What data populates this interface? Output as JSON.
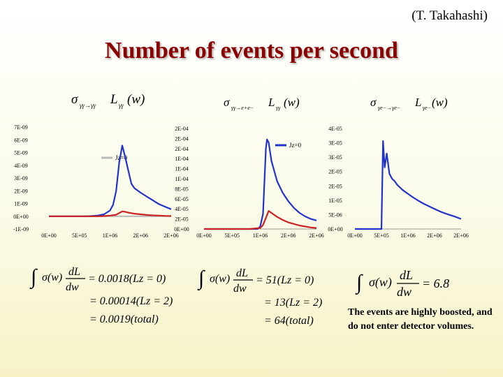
{
  "header": {
    "credit": "(T. Takahashi)",
    "title": "Number of events per second"
  },
  "chart_data": [
    {
      "type": "line",
      "label_parts": [
        "σ",
        "γγ→γγ",
        "L",
        "γγ",
        "(w)"
      ],
      "ylim": [
        -1e-09,
        7e-09
      ],
      "yticks": [
        "7E-09",
        "6E-09",
        "5E-09",
        "4E-09",
        "3E-09",
        "2E-09",
        "1E-09",
        "0E+00",
        "-1E-09"
      ],
      "xlim": [
        0,
        2000000
      ],
      "xticks": [
        "0E+00",
        "5E+05",
        "1E+06",
        "2E+06",
        "2E+06"
      ],
      "series": [
        {
          "name": "Jz=0",
          "color": "#bbbbbb",
          "x": [
            0,
            300000,
            600000,
            800000,
            1000000,
            1150000,
            1300000,
            1600000,
            2000000
          ],
          "y": [
            0,
            0,
            0,
            0,
            0,
            0,
            0,
            0,
            0
          ]
        },
        {
          "color": "#2233cc",
          "x": [
            0,
            300000,
            600000,
            700000,
            800000,
            900000,
            1000000,
            1050000,
            1100000,
            1150000,
            1200000,
            1250000,
            1300000,
            1350000,
            1400000,
            1500000,
            1600000,
            1700000,
            1800000,
            1900000,
            2000000
          ],
          "y": [
            0,
            0,
            0,
            2e-11,
            6e-11,
            1.5e-10,
            4.5e-10,
            9e-10,
            2e-09,
            4.2e-09,
            5.55e-09,
            4.6e-09,
            3.55e-09,
            2.55e-09,
            2.2e-09,
            1.85e-09,
            1.55e-09,
            1.25e-09,
            9.5e-10,
            7.5e-10,
            5.5e-10
          ]
        },
        {
          "color": "#cc2222",
          "x": [
            0,
            300000,
            600000,
            700000,
            800000,
            900000,
            1000000,
            1100000,
            1150000,
            1200000,
            1250000,
            1300000,
            1400000,
            1500000,
            1600000,
            1700000,
            1800000,
            1900000,
            2000000
          ],
          "y": [
            0,
            0,
            0,
            0,
            0,
            2e-11,
            5e-11,
            1.2e-10,
            2.5e-10,
            3.8e-10,
            3.5e-10,
            2.8e-10,
            2e-10,
            1.5e-10,
            1e-10,
            7e-11,
            5e-11,
            3e-11,
            2e-11
          ]
        }
      ]
    },
    {
      "type": "line",
      "label_parts": [
        "σ",
        "γγ→e+e−",
        "L",
        "γγ",
        "(w)"
      ],
      "ylim": [
        0,
        0.0002
      ],
      "yticks": [
        "2E-04",
        "2E-04",
        "2E-04",
        "1E-04",
        "1E-04",
        "1E-04",
        "8E-05",
        "6E-05",
        "4E-05",
        "2E-05",
        "0E+00"
      ],
      "xlim": [
        0,
        2000000
      ],
      "xticks": [
        "0E+00",
        "5E+05",
        "1E+06",
        "2E+06",
        "2E+06"
      ],
      "series": [
        {
          "name": "Jz=0",
          "color": "#2233cc",
          "x": [
            0,
            300000,
            600000,
            800000,
            900000,
            950000,
            1000000,
            1050000,
            1100000,
            1120000,
            1150000,
            1200000,
            1300000,
            1400000,
            1500000,
            1600000,
            1700000,
            1800000,
            1900000,
            2000000
          ],
          "y": [
            0,
            0,
            0,
            0,
            0,
            0,
            5e-06,
            3e-05,
            0.00016,
            0.000178,
            0.000172,
            0.000135,
            9.5e-05,
            7.2e-05,
            5.5e-05,
            4.2e-05,
            3.2e-05,
            2.5e-05,
            2e-05,
            1.7e-05
          ]
        },
        {
          "color": "#cc2222",
          "x": [
            0,
            300000,
            600000,
            800000,
            1000000,
            1050000,
            1100000,
            1150000,
            1200000,
            1300000,
            1400000,
            1500000,
            1600000,
            1700000,
            1800000,
            1900000,
            2000000
          ],
          "y": [
            0,
            0,
            0,
            0,
            2e-06,
            8e-06,
            2.2e-05,
            3.6e-05,
            3.2e-05,
            2.4e-05,
            1.8e-05,
            1.3e-05,
            1e-05,
            7e-06,
            5e-06,
            3e-06,
            2e-06
          ]
        }
      ]
    },
    {
      "type": "line",
      "label_parts": [
        "σ",
        "γe−→γe−",
        "L",
        "γe−",
        "(w)"
      ],
      "ylim": [
        0,
        4e-05
      ],
      "yticks": [
        "4E-05",
        "3E-05",
        "3E-05",
        "2E-05",
        "2E-05",
        "1E-05",
        "5E-06",
        "0E+00"
      ],
      "xlim": [
        0,
        2000000
      ],
      "xticks": [
        "0E+00",
        "5E+05",
        "1E+06",
        "2E+06",
        "2E+06"
      ],
      "series": [
        {
          "color": "#2233cc",
          "x": [
            0,
            300000,
            450000,
            480000,
            500000,
            530000,
            560000,
            600000,
            650000,
            700000,
            750000,
            800000,
            900000,
            1000000,
            1100000,
            1200000,
            1300000,
            1400000,
            1500000,
            1600000,
            1700000,
            1800000,
            1900000,
            2000000
          ],
          "y": [
            0,
            0,
            0,
            0,
            0,
            3.5e-05,
            2.45e-05,
            3e-05,
            2.2e-05,
            2e-05,
            1.9e-05,
            1.75e-05,
            1.55e-05,
            1.4e-05,
            1.25e-05,
            1.12e-05,
            1e-05,
            9e-06,
            8e-06,
            7e-06,
            6.2e-06,
            5.5e-06,
            4.8e-06,
            4e-06
          ]
        }
      ]
    }
  ],
  "formulas": {
    "f1": {
      "lhs": "∫σ(w) dL/dw dw",
      "v1": "= 0.0018(Lz = 0)",
      "v2": "= 0.00014(Lz = 2)",
      "v3": "= 0.0019(total)"
    },
    "f2": {
      "lhs": "∫σ(w) dL/dw",
      "v1": "= 51(Lz = 0)",
      "v2": "= 13(Lz = 2)",
      "v3": "= 64(total)"
    },
    "f3": {
      "lhs": "∫σ(w) dL/dw dw",
      "v1": "= 6.8"
    }
  },
  "note": "The events are highly boosted, and do not enter detector volumes."
}
